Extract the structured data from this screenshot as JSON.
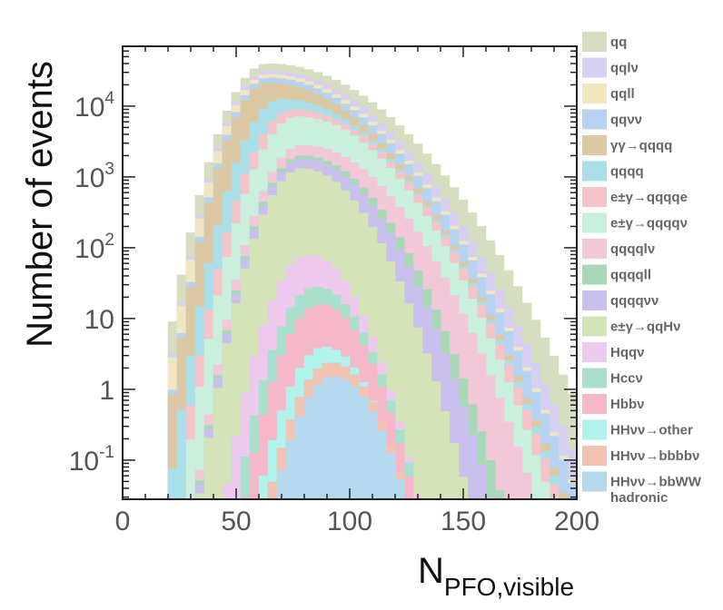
{
  "chart_data": {
    "type": "area",
    "histogram": "stacked-step",
    "x_label_main": "N",
    "x_label_sub": "PFO,visible",
    "y_label": "Number of events",
    "xlim": [
      0,
      200
    ],
    "ylim": [
      0.028,
      70000
    ],
    "y_scale": "log",
    "legend_position": "right",
    "x_ticks": [
      {
        "value": 0,
        "label": "0"
      },
      {
        "value": 50,
        "label": "50"
      },
      {
        "value": 100,
        "label": "100"
      },
      {
        "value": 150,
        "label": "150"
      },
      {
        "value": 200,
        "label": "200"
      }
    ],
    "y_ticks": [
      {
        "value": 0.1,
        "base": "10",
        "exp": "-1"
      },
      {
        "value": 1,
        "base": "1",
        "exp": ""
      },
      {
        "value": 10,
        "base": "10",
        "exp": ""
      },
      {
        "value": 100,
        "base": "10",
        "exp": "2"
      },
      {
        "value": 1000,
        "base": "10",
        "exp": "3"
      },
      {
        "value": 10000,
        "base": "10",
        "exp": "4"
      }
    ],
    "series_curve_note": "each series gives the stacked top edge: peak_log10 at peak_x, Gaussian in log10 space with left/right widths, fixed start/end bins",
    "series": [
      {
        "name": "qq",
        "color": "#d5dfc0",
        "peak_x": 64,
        "peak_log10": 4.6,
        "sigma_left": 22,
        "sigma_right": 62,
        "start": 17,
        "end": 200
      },
      {
        "name": "qqlν",
        "color": "#d8d0f0",
        "peak_x": 64,
        "peak_log10": 4.5,
        "sigma_left": 21,
        "sigma_right": 58,
        "start": 17,
        "end": 200
      },
      {
        "name": "qqll",
        "color": "#f0e6c2",
        "peak_x": 64,
        "peak_log10": 4.45,
        "sigma_left": 21,
        "sigma_right": 56,
        "start": 19,
        "end": 200
      },
      {
        "name": "qqνν",
        "color": "#b7d3f2",
        "peak_x": 64,
        "peak_log10": 4.4,
        "sigma_left": 20,
        "sigma_right": 56,
        "start": 19,
        "end": 200
      },
      {
        "name": "γγ→qqqq",
        "color": "#dcc9a3",
        "peak_x": 64,
        "peak_log10": 4.33,
        "sigma_left": 20,
        "sigma_right": 54,
        "start": 19,
        "end": 200
      },
      {
        "name": "qqqq",
        "color": "#a9dfe8",
        "peak_x": 70,
        "peak_log10": 4.1,
        "sigma_left": 21,
        "sigma_right": 52,
        "start": 17,
        "end": 200
      },
      {
        "name": "e±γ→qqqqe",
        "color": "#f4c4c8",
        "peak_x": 75,
        "peak_log10": 3.95,
        "sigma_left": 22,
        "sigma_right": 50,
        "start": 25,
        "end": 200
      },
      {
        "name": "e±γ→qqqqν",
        "color": "#c9f0dc",
        "peak_x": 77,
        "peak_log10": 3.85,
        "sigma_left": 22,
        "sigma_right": 48,
        "start": 27,
        "end": 200
      },
      {
        "name": "qqqqlν",
        "color": "#f2c7d8",
        "peak_x": 79,
        "peak_log10": 3.45,
        "sigma_left": 21,
        "sigma_right": 46,
        "start": 25,
        "end": 200
      },
      {
        "name": "qqqqll",
        "color": "#a9d8b8",
        "peak_x": 79,
        "peak_log10": 3.3,
        "sigma_left": 21,
        "sigma_right": 40,
        "start": 25,
        "end": 200
      },
      {
        "name": "qqqqνν",
        "color": "#c9c0ee",
        "peak_x": 79,
        "peak_log10": 3.25,
        "sigma_left": 21,
        "sigma_right": 38,
        "start": 25,
        "end": 200
      },
      {
        "name": "e±γ→qqHν",
        "color": "#d5e3b8",
        "peak_x": 79,
        "peak_log10": 3.12,
        "sigma_left": 21,
        "sigma_right": 34,
        "start": 17,
        "end": 180
      },
      {
        "name": "Hqqν",
        "color": "#edc9ee",
        "peak_x": 82,
        "peak_log10": 1.9,
        "sigma_left": 20,
        "sigma_right": 26,
        "start": 25,
        "end": 170
      },
      {
        "name": "Hccν",
        "color": "#a9e0cc",
        "peak_x": 85,
        "peak_log10": 1.45,
        "sigma_left": 20,
        "sigma_right": 26,
        "start": 25,
        "end": 170
      },
      {
        "name": "Hbbν",
        "color": "#f6b7c9",
        "peak_x": 87,
        "peak_log10": 1.2,
        "sigma_left": 20,
        "sigma_right": 25,
        "start": 25,
        "end": 165
      },
      {
        "name": "HHνν→other",
        "color": "#b0f2ec",
        "peak_x": 89,
        "peak_log10": 0.6,
        "sigma_left": 20,
        "sigma_right": 24,
        "start": 29,
        "end": 165
      },
      {
        "name": "HHνν→bbbbν",
        "color": "#f2c3b0",
        "peak_x": 92,
        "peak_log10": 0.38,
        "sigma_left": 20,
        "sigma_right": 24,
        "start": 29,
        "end": 165
      },
      {
        "name": "HHνν→bbWW",
        "color": "#b5d9ef",
        "peak_x": 93,
        "peak_log10": 0.18,
        "sigma_left": 20,
        "sigma_right": 24,
        "start": 29,
        "end": 160
      }
    ],
    "extra_legend_labels": [
      "hadronic"
    ]
  }
}
